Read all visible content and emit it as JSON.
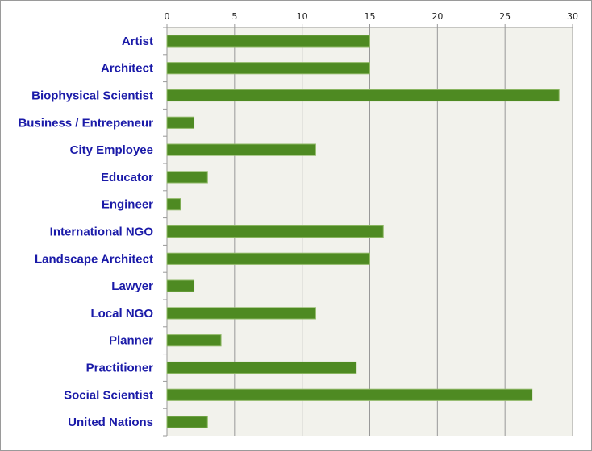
{
  "chart_data": {
    "type": "bar",
    "orientation": "horizontal",
    "title": "",
    "xlabel": "",
    "ylabel": "",
    "categories": [
      "Artist",
      "Architect",
      "Biophysical Scientist",
      "Business / Entrepeneur",
      "City Employee",
      "Educator",
      "Engineer",
      "International NGO",
      "Landscape Architect",
      "Lawyer",
      "Local NGO",
      "Planner",
      "Practitioner",
      "Social Scientist",
      "United Nations"
    ],
    "values": [
      15,
      15,
      29,
      2,
      11,
      3,
      1,
      16,
      15,
      2,
      11,
      4,
      14,
      27,
      3
    ],
    "xlim": [
      0,
      30
    ],
    "xticks": [
      "0",
      "5",
      "10",
      "15",
      "20",
      "25",
      "30"
    ],
    "xaxis_position": "top",
    "grid": true,
    "legend": "none",
    "colors": {
      "bar": "#4e8a22",
      "bar_edge": "#8fb866",
      "plot_bg": "#f2f2ec",
      "grid": "#999999",
      "label": "#1a1aa8"
    }
  }
}
